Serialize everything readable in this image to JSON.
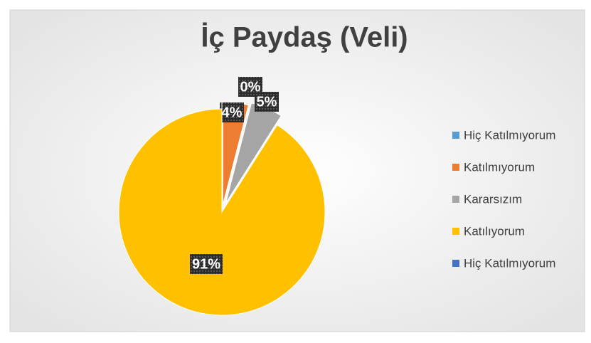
{
  "chart_data": {
    "type": "pie",
    "title": "İç Paydaş (Veli)",
    "categories": [
      "Hiç Katılmıyorum",
      "Katılmıyorum",
      "Kararsızım",
      "Katılıyorum",
      "Hiç Katılmıyorum"
    ],
    "values": [
      0,
      4,
      5,
      91,
      0
    ],
    "value_labels": [
      "0%",
      "4%",
      "5%",
      "91%",
      null
    ],
    "colors": [
      "#5b9bd5",
      "#ed7d31",
      "#a5a5a5",
      "#ffc000",
      "#4472c4"
    ],
    "legend": "right"
  }
}
